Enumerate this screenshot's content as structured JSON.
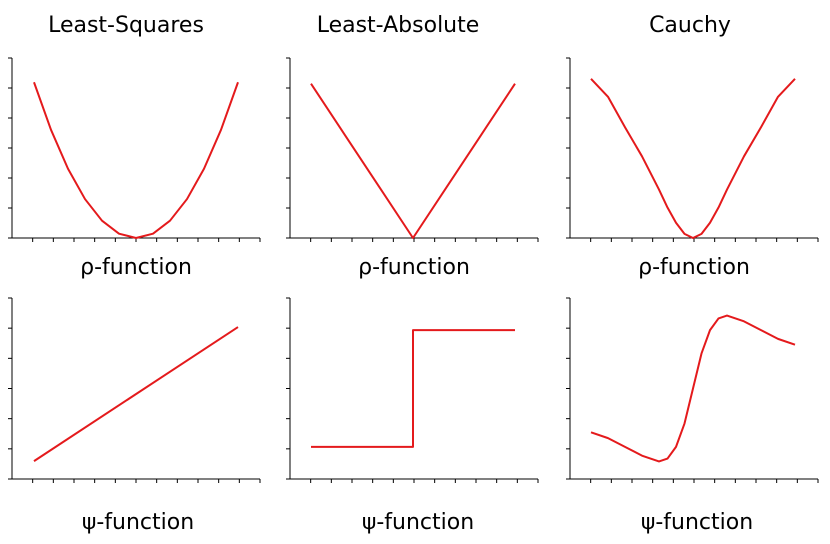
{
  "colors": {
    "curve": "#e41a1c",
    "axis": "#000000",
    "text": "#000000"
  },
  "chart_data": [
    {
      "type": "line",
      "title": "Least-Squares",
      "xlabel": "ρ-function",
      "function": "rho",
      "xlim": [
        -3,
        3
      ],
      "ylim": [
        0,
        5.2
      ],
      "series": [
        {
          "x": [
            -3,
            -2.5,
            -2,
            -1.5,
            -1,
            -0.5,
            0,
            0.5,
            1,
            1.5,
            2,
            2.5,
            3
          ],
          "values": [
            4.5,
            3.125,
            2,
            1.125,
            0.5,
            0.125,
            0,
            0.125,
            0.5,
            1.125,
            2,
            3.125,
            4.5
          ]
        }
      ]
    },
    {
      "type": "line",
      "title": "Least-Absolute",
      "xlabel": "ρ-function",
      "function": "rho",
      "xlim": [
        -3,
        3
      ],
      "ylim": [
        0,
        3.5
      ],
      "series": [
        {
          "x": [
            -3,
            -2,
            -1,
            0,
            1,
            2,
            3
          ],
          "values": [
            3,
            2,
            1,
            0,
            1,
            2,
            3
          ]
        }
      ]
    },
    {
      "type": "line",
      "title": "Cauchy",
      "xlabel": "ρ-function",
      "function": "rho",
      "xlim": [
        -3,
        3
      ],
      "ylim": [
        0,
        1.3
      ],
      "series": [
        {
          "x": [
            -3,
            -2.5,
            -2,
            -1.5,
            -1,
            -0.75,
            -0.5,
            -0.25,
            0,
            0.25,
            0.5,
            0.75,
            1,
            1.5,
            2,
            2.5,
            3
          ],
          "values": [
            1.15,
            1.02,
            0.8,
            0.59,
            0.35,
            0.22,
            0.11,
            0.03,
            0,
            0.03,
            0.11,
            0.22,
            0.35,
            0.59,
            0.8,
            1.02,
            1.15
          ]
        }
      ]
    },
    {
      "type": "line",
      "title": "",
      "xlabel": "ψ-function",
      "function": "psi",
      "xlim": [
        -3,
        3
      ],
      "ylim": [
        -3.8,
        4.3
      ],
      "series": [
        {
          "x": [
            -3,
            3
          ],
          "values": [
            -3,
            3
          ]
        }
      ]
    },
    {
      "type": "line",
      "title": "",
      "xlabel": "ψ-function",
      "function": "psi",
      "xlim": [
        -3,
        3
      ],
      "ylim": [
        -1.55,
        1.55
      ],
      "series": [
        {
          "x": [
            -3,
            0,
            0,
            3
          ],
          "values": [
            -1,
            -1,
            1,
            1
          ]
        }
      ]
    },
    {
      "type": "line",
      "title": "",
      "xlabel": "ψ-function",
      "function": "psi",
      "xlim": [
        -3,
        3
      ],
      "ylim": [
        -0.62,
        0.62
      ],
      "series": [
        {
          "x": [
            -3,
            -2.5,
            -2,
            -1.5,
            -1,
            -0.75,
            -0.5,
            -0.25,
            0,
            0.25,
            0.5,
            0.75,
            1,
            1.5,
            2,
            2.5,
            3
          ],
          "values": [
            -0.3,
            -0.34,
            -0.4,
            -0.46,
            -0.5,
            -0.48,
            -0.4,
            -0.24,
            0,
            0.24,
            0.4,
            0.48,
            0.5,
            0.46,
            0.4,
            0.34,
            0.3
          ]
        }
      ]
    }
  ]
}
